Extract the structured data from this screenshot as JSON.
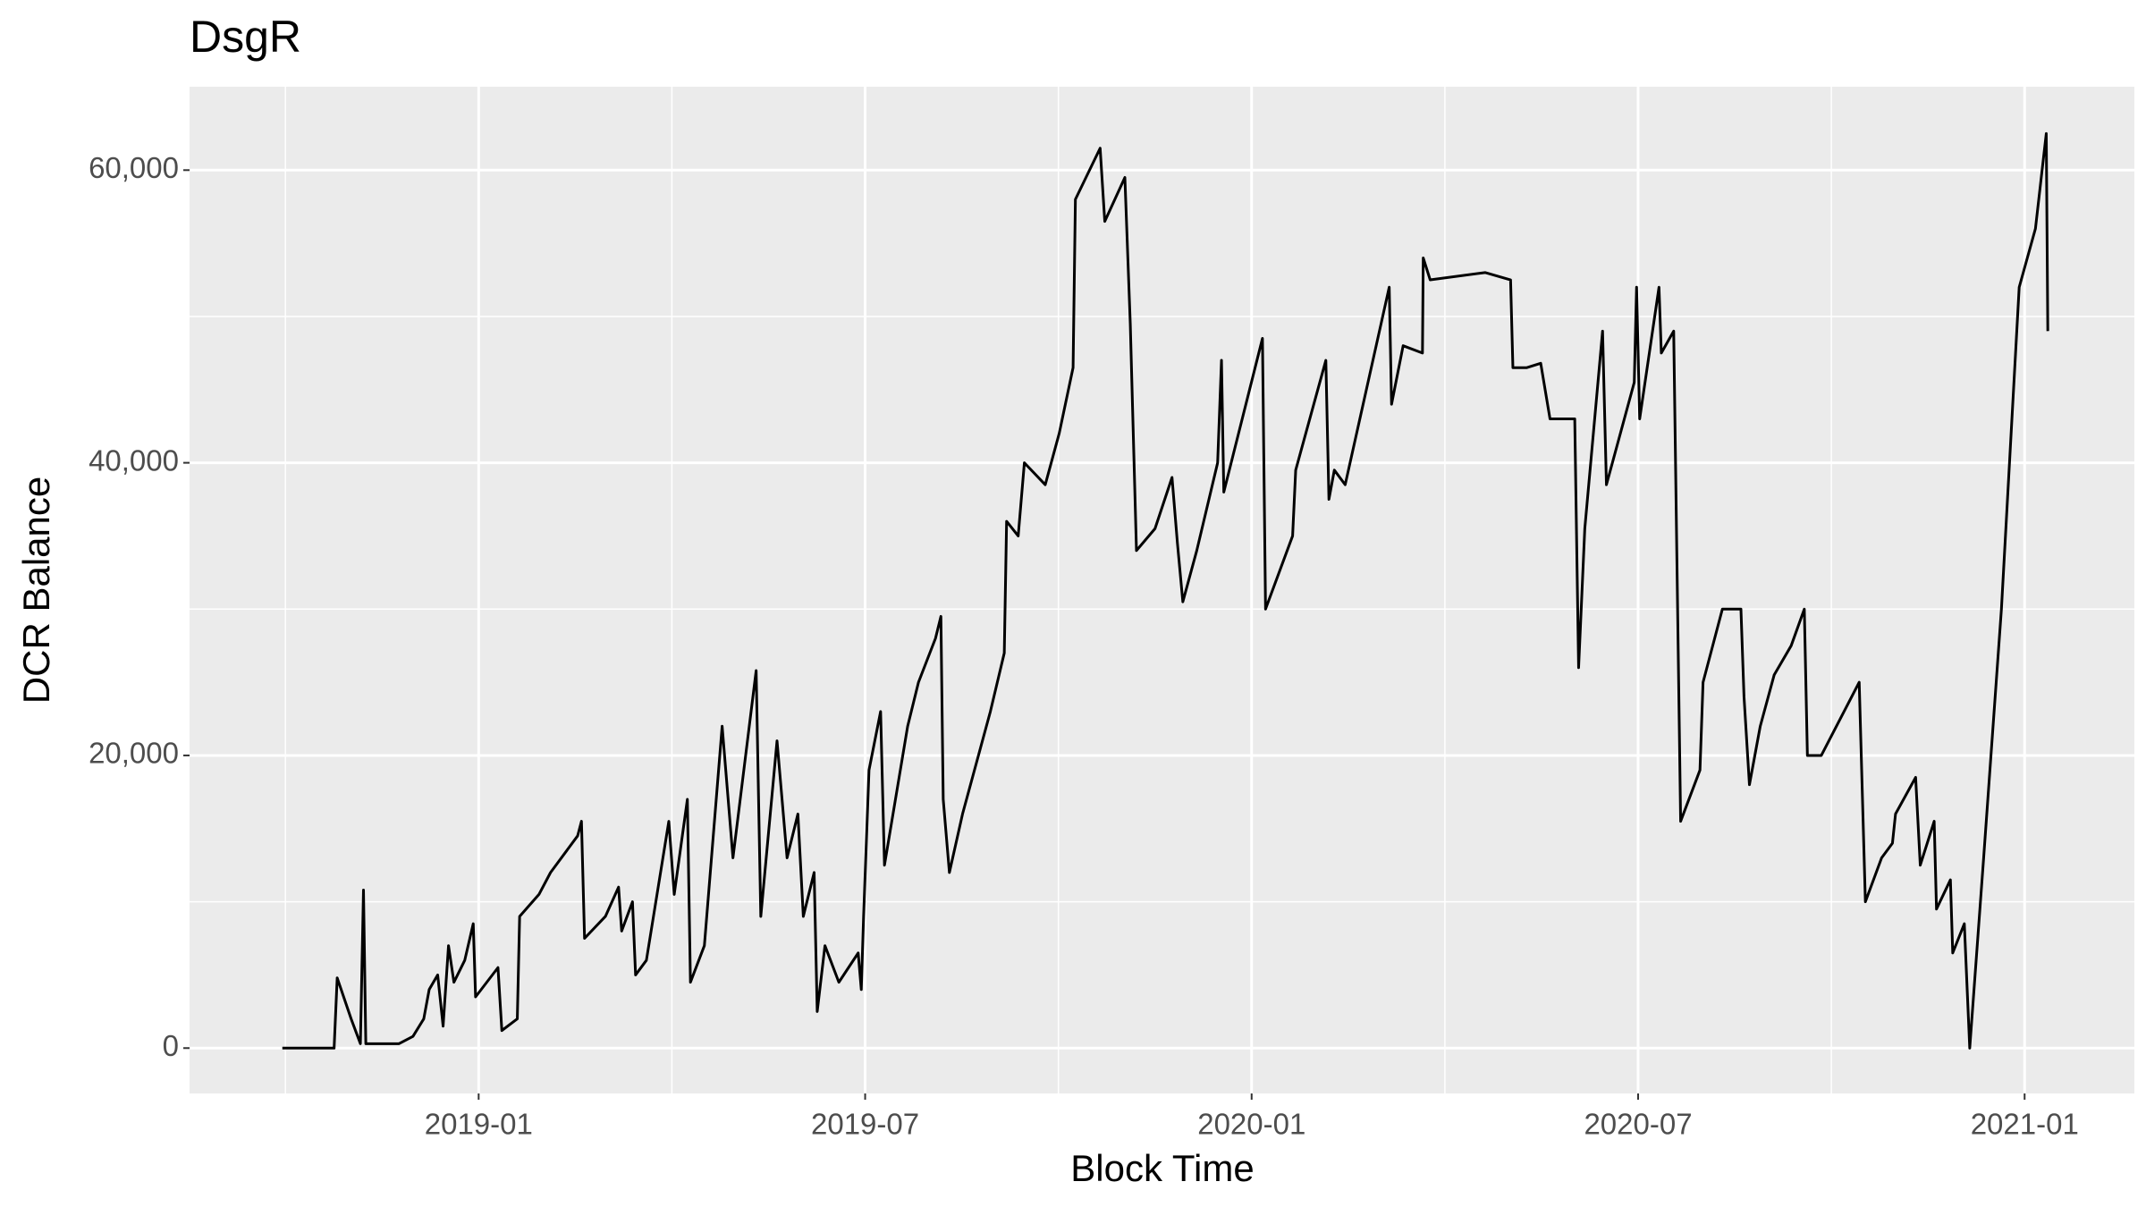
{
  "chart_data": {
    "type": "line",
    "title": "DsgR",
    "x_label": "Block Time",
    "y_label": "DCR Balance",
    "color": "#000000",
    "grid": true,
    "xlim": [
      2018.626,
      2021.142
    ],
    "ylim": [
      -3100,
      65700
    ],
    "xticks": [
      {
        "value": 2019.0,
        "label": "2019-01"
      },
      {
        "value": 2019.5,
        "label": "2019-07"
      },
      {
        "value": 2020.0,
        "label": "2020-01"
      },
      {
        "value": 2020.5,
        "label": "2020-07"
      },
      {
        "value": 2021.0,
        "label": "2021-01"
      }
    ],
    "minor_xticks": [
      2018.75,
      2019.25,
      2019.75,
      2020.25,
      2020.75
    ],
    "yticks": [
      0,
      {
        "value": 20000,
        "label": "20,000"
      },
      {
        "value": 40000,
        "label": "40,000"
      },
      {
        "value": 60000,
        "label": "60,000"
      }
    ],
    "minor_yticks": [
      10000,
      30000,
      50000
    ],
    "x": [
      2018.746,
      2018.813,
      2018.817,
      2018.835,
      2018.847,
      2018.851,
      2018.854,
      2018.897,
      2018.915,
      2018.929,
      2018.936,
      2018.947,
      2018.954,
      2018.961,
      2018.968,
      2018.982,
      2018.993,
      2018.996,
      2019.025,
      2019.03,
      2019.05,
      2019.053,
      2019.078,
      2019.093,
      2019.128,
      2019.133,
      2019.137,
      2019.164,
      2019.181,
      2019.185,
      2019.199,
      2019.203,
      2019.217,
      2019.246,
      2019.253,
      2019.27,
      2019.274,
      2019.292,
      2019.315,
      2019.329,
      2019.359,
      2019.365,
      2019.386,
      2019.399,
      2019.413,
      2019.42,
      2019.434,
      2019.438,
      2019.448,
      2019.466,
      2019.491,
      2019.495,
      2019.498,
      2019.505,
      2019.52,
      2019.525,
      2019.555,
      2019.569,
      2019.591,
      2019.598,
      2019.601,
      2019.609,
      2019.626,
      2019.662,
      2019.68,
      2019.683,
      2019.698,
      2019.706,
      2019.733,
      2019.751,
      2019.769,
      2019.772,
      2019.804,
      2019.81,
      2019.836,
      2019.843,
      2019.851,
      2019.875,
      2019.897,
      2019.904,
      2019.911,
      2019.929,
      2019.956,
      2019.961,
      2019.964,
      2020.014,
      2020.018,
      2020.053,
      2020.057,
      2020.096,
      2020.1,
      2020.107,
      2020.121,
      2020.178,
      2020.181,
      2020.196,
      2020.221,
      2020.222,
      2020.231,
      2020.302,
      2020.335,
      2020.338,
      2020.356,
      2020.374,
      2020.386,
      2020.418,
      2020.423,
      2020.431,
      2020.454,
      2020.459,
      2020.495,
      2020.498,
      2020.502,
      2020.527,
      2020.53,
      2020.546,
      2020.55,
      2020.555,
      2020.58,
      2020.584,
      2020.609,
      2020.633,
      2020.637,
      2020.644,
      2020.658,
      2020.676,
      2020.698,
      2020.715,
      2020.719,
      2020.737,
      2020.786,
      2020.794,
      2020.815,
      2020.829,
      2020.833,
      2020.859,
      2020.865,
      2020.883,
      2020.886,
      2020.904,
      2020.907,
      2020.922,
      2020.929,
      2020.947,
      2020.97,
      2020.993,
      2021.014,
      2021.028,
      2021.03
    ],
    "values": [
      0,
      0,
      4800,
      2000,
      300,
      10800,
      300,
      300,
      800,
      2000,
      4000,
      5000,
      1500,
      7000,
      4500,
      6000,
      8500,
      3500,
      5500,
      1200,
      2000,
      9000,
      10500,
      12000,
      14500,
      15500,
      7500,
      9000,
      11000,
      8000,
      10000,
      5000,
      6000,
      15500,
      10500,
      17000,
      4500,
      7000,
      22000,
      13000,
      25800,
      9000,
      21000,
      13000,
      16000,
      9000,
      12000,
      2500,
      7000,
      4500,
      6500,
      4000,
      9000,
      19000,
      23000,
      12500,
      22000,
      25000,
      28000,
      29500,
      17000,
      12000,
      16000,
      23000,
      27000,
      36000,
      35000,
      40000,
      38500,
      42000,
      46500,
      58000,
      61500,
      56500,
      59500,
      49500,
      34000,
      35500,
      39000,
      34500,
      30500,
      34000,
      40000,
      47000,
      38000,
      48500,
      30000,
      35000,
      39500,
      47000,
      37500,
      39500,
      38500,
      52000,
      44000,
      48000,
      47500,
      54000,
      52500,
      53000,
      52500,
      46500,
      46500,
      46800,
      43000,
      43000,
      26000,
      35500,
      49000,
      38500,
      45500,
      52000,
      43000,
      52000,
      47500,
      49000,
      34000,
      15500,
      19000,
      25000,
      30000,
      30000,
      24000,
      18000,
      22000,
      25500,
      27500,
      30000,
      20000,
      20000,
      25000,
      10000,
      13000,
      14000,
      16000,
      18500,
      12500,
      15500,
      9500,
      11500,
      6500,
      8500,
      0,
      13000,
      30000,
      52000,
      56000,
      62500,
      49000
    ]
  }
}
